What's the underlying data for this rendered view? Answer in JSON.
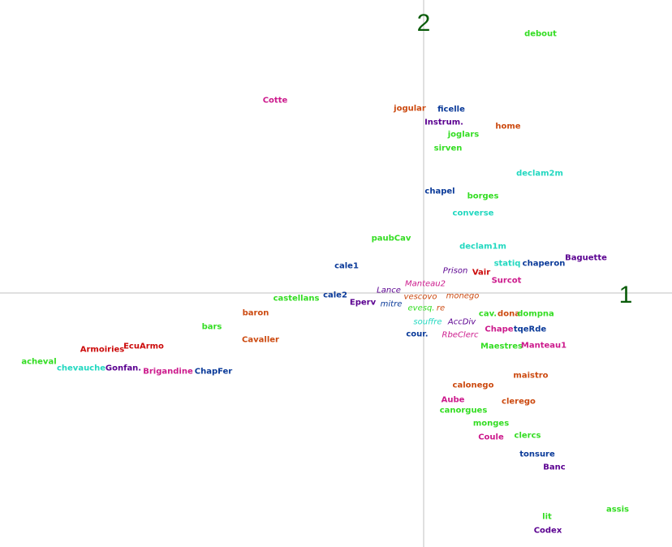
{
  "chart_data": {
    "type": "scatter",
    "title": "",
    "xlabel": "1",
    "ylabel": "2",
    "xlim": [
      -522,
      306
    ],
    "ylim": [
      -313,
      361
    ],
    "grid": false,
    "colors": {
      "green": "#33dd22",
      "cyan": "#22d8c0",
      "blue": "#0a3a99",
      "purple": "#5a0090",
      "magenta": "#cc1a8c",
      "orange": "#cc4a10",
      "red": "#cc0a0a"
    },
    "points": [
      {
        "label": "debout",
        "x": 144,
        "y": 319,
        "color": "green"
      },
      {
        "label": "Cotte",
        "x": -183,
        "y": 237,
        "color": "magenta"
      },
      {
        "label": "jogular",
        "x": -17,
        "y": 227,
        "color": "orange"
      },
      {
        "label": "ficelle",
        "x": 34,
        "y": 226,
        "color": "blue"
      },
      {
        "label": "Instrum.",
        "x": 25,
        "y": 210,
        "color": "purple"
      },
      {
        "label": "home",
        "x": 104,
        "y": 205,
        "color": "orange"
      },
      {
        "label": "joglars",
        "x": 49,
        "y": 195,
        "color": "green"
      },
      {
        "label": "sirven",
        "x": 30,
        "y": 178,
        "color": "green"
      },
      {
        "label": "declam2m",
        "x": 143,
        "y": 147,
        "color": "cyan"
      },
      {
        "label": "chapel",
        "x": 20,
        "y": 125,
        "color": "blue"
      },
      {
        "label": "borges",
        "x": 73,
        "y": 119,
        "color": "green"
      },
      {
        "label": "converse",
        "x": 61,
        "y": 98,
        "color": "cyan"
      },
      {
        "label": "paubCav",
        "x": -40,
        "y": 67,
        "color": "green"
      },
      {
        "label": "declam1m",
        "x": 73,
        "y": 57,
        "color": "cyan"
      },
      {
        "label": "Baguette",
        "x": 200,
        "y": 43,
        "color": "purple"
      },
      {
        "label": "statiq",
        "x": 103,
        "y": 36,
        "color": "cyan"
      },
      {
        "label": "chaperon",
        "x": 148,
        "y": 36,
        "color": "blue"
      },
      {
        "label": "cale1",
        "x": -95,
        "y": 33,
        "color": "blue"
      },
      {
        "label": "Prison",
        "x": 39,
        "y": 27,
        "color": "purple",
        "italic": true
      },
      {
        "label": "Vair",
        "x": 71,
        "y": 25,
        "color": "red"
      },
      {
        "label": "Surcot",
        "x": 102,
        "y": 15,
        "color": "magenta"
      },
      {
        "label": "Manteau2",
        "x": 2,
        "y": 11,
        "color": "magenta",
        "italic": true
      },
      {
        "label": "Lance",
        "x": -43,
        "y": 3,
        "color": "purple",
        "italic": true
      },
      {
        "label": "castellans",
        "x": -157,
        "y": -7,
        "color": "green"
      },
      {
        "label": "cale2",
        "x": -109,
        "y": -3,
        "color": "blue"
      },
      {
        "label": "vescovo",
        "x": -4,
        "y": -5,
        "color": "orange",
        "italic": true
      },
      {
        "label": "monego",
        "x": 48,
        "y": -4,
        "color": "orange",
        "italic": true
      },
      {
        "label": "Eperv",
        "x": -75,
        "y": -12,
        "color": "purple"
      },
      {
        "label": "mitre",
        "x": -40,
        "y": -14,
        "color": "blue",
        "italic": true
      },
      {
        "label": "evesq.",
        "x": -3,
        "y": -19,
        "color": "green",
        "italic": true
      },
      {
        "label": "re",
        "x": 21,
        "y": -19,
        "color": "orange",
        "italic": true
      },
      {
        "label": "baron",
        "x": -207,
        "y": -25,
        "color": "orange"
      },
      {
        "label": "cav.",
        "x": 79,
        "y": -26,
        "color": "green"
      },
      {
        "label": "dona",
        "x": 105,
        "y": -26,
        "color": "orange"
      },
      {
        "label": "dompna",
        "x": 138,
        "y": -26,
        "color": "green"
      },
      {
        "label": "souffre",
        "x": 5,
        "y": -36,
        "color": "cyan",
        "italic": true
      },
      {
        "label": "AccDiv",
        "x": 47,
        "y": -36,
        "color": "purple",
        "italic": true
      },
      {
        "label": "bars",
        "x": -261,
        "y": -42,
        "color": "green"
      },
      {
        "label": "Chape",
        "x": 93,
        "y": -45,
        "color": "magenta"
      },
      {
        "label": "tqeRde",
        "x": 131,
        "y": -45,
        "color": "blue"
      },
      {
        "label": "cour.",
        "x": -8,
        "y": -51,
        "color": "blue"
      },
      {
        "label": "RbeClerc",
        "x": 45,
        "y": -52,
        "color": "magenta",
        "italic": true
      },
      {
        "label": "Cavaller",
        "x": -201,
        "y": -58,
        "color": "orange"
      },
      {
        "label": "Maestres",
        "x": 96,
        "y": -66,
        "color": "green"
      },
      {
        "label": "Manteau1",
        "x": 148,
        "y": -65,
        "color": "magenta"
      },
      {
        "label": "Armoiries",
        "x": -396,
        "y": -70,
        "color": "red"
      },
      {
        "label": "EcuArmo",
        "x": -345,
        "y": -66,
        "color": "red"
      },
      {
        "label": "acheval",
        "x": -474,
        "y": -85,
        "color": "green"
      },
      {
        "label": "chevauche",
        "x": -422,
        "y": -93,
        "color": "cyan"
      },
      {
        "label": "Gonfan.",
        "x": -370,
        "y": -93,
        "color": "purple"
      },
      {
        "label": "Brigandine",
        "x": -315,
        "y": -97,
        "color": "magenta"
      },
      {
        "label": "ChapFer",
        "x": -259,
        "y": -97,
        "color": "blue"
      },
      {
        "label": "maistro",
        "x": 132,
        "y": -102,
        "color": "orange"
      },
      {
        "label": "calonego",
        "x": 61,
        "y": -114,
        "color": "orange"
      },
      {
        "label": "Aube",
        "x": 36,
        "y": -132,
        "color": "magenta"
      },
      {
        "label": "clerego",
        "x": 117,
        "y": -134,
        "color": "orange"
      },
      {
        "label": "canorgues",
        "x": 49,
        "y": -145,
        "color": "green"
      },
      {
        "label": "monges",
        "x": 83,
        "y": -161,
        "color": "green"
      },
      {
        "label": "clercs",
        "x": 128,
        "y": -176,
        "color": "green"
      },
      {
        "label": "Coule",
        "x": 83,
        "y": -178,
        "color": "magenta"
      },
      {
        "label": "tonsure",
        "x": 140,
        "y": -199,
        "color": "blue"
      },
      {
        "label": "Banc",
        "x": 161,
        "y": -215,
        "color": "purple"
      },
      {
        "label": "assis",
        "x": 239,
        "y": -267,
        "color": "green"
      },
      {
        "label": "lit",
        "x": 152,
        "y": -276,
        "color": "green"
      },
      {
        "label": "Codex",
        "x": 153,
        "y": -293,
        "color": "purple"
      }
    ]
  }
}
